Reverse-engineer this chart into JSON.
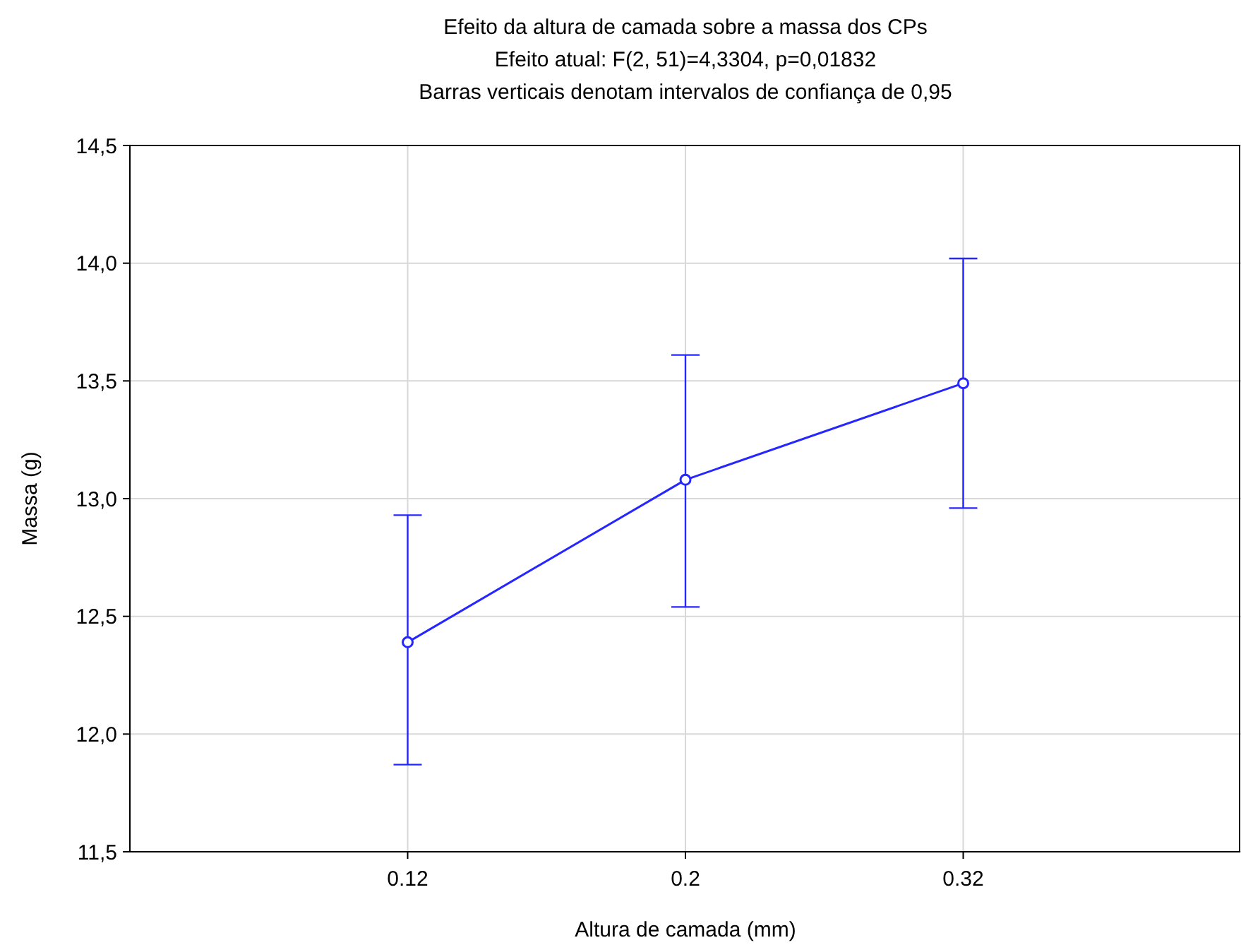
{
  "chart_data": {
    "type": "line",
    "title": "Efeito da altura de camada sobre a massa dos CPs",
    "subtitle": "Efeito atual: F(2, 51)=4,3304, p=0,01832",
    "annotations": [
      "Barras verticais denotam intervalos de confiança de 0,95"
    ],
    "xlabel": "Altura de camada (mm)",
    "ylabel": "Massa (g)",
    "categories": [
      "0.12",
      "0.2",
      "0.32"
    ],
    "series": [
      {
        "color": "#2626ff",
        "values": [
          12.39,
          13.08,
          13.49
        ],
        "errors": [
          [
            11.87,
            12.93
          ],
          [
            12.54,
            13.61
          ],
          [
            12.96,
            14.02
          ]
        ]
      }
    ],
    "ylim": [
      11.5,
      14.5
    ],
    "yticks": [
      {
        "value": 11.5,
        "label": "11,5"
      },
      {
        "value": 12,
        "label": "12,0"
      },
      {
        "value": 12.5,
        "label": "12,5"
      },
      {
        "value": 13,
        "label": "13,0"
      },
      {
        "value": 13.5,
        "label": "13,5"
      },
      {
        "value": 14,
        "label": "14,0"
      },
      {
        "value": 14.5,
        "label": "14,5"
      }
    ],
    "grid": true,
    "marker": "circle",
    "line_style": "solid"
  }
}
